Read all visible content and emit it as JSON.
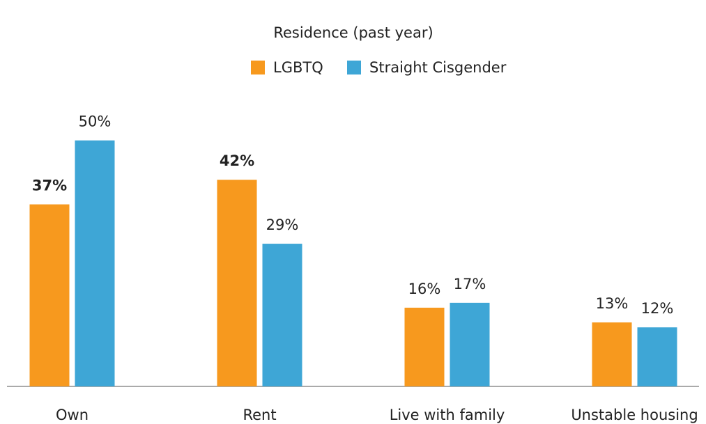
{
  "chart_data": {
    "type": "bar",
    "title": "Residence (past year)",
    "categories": [
      "Own",
      "Rent",
      "Live with family",
      "Unstable housing"
    ],
    "series": [
      {
        "name": "LGBTQ",
        "color": "#f7991e",
        "values": [
          37,
          42,
          16,
          13
        ],
        "value_labels": [
          "37%",
          "42%",
          "16%",
          "13%"
        ]
      },
      {
        "name": "Straight Cisgender",
        "color": "#3ea6d6",
        "values": [
          50,
          29,
          17,
          12
        ],
        "value_labels": [
          "50%",
          "29%",
          "17%",
          "12%"
        ]
      }
    ],
    "ylim": [
      0,
      60
    ],
    "legend": "top"
  }
}
